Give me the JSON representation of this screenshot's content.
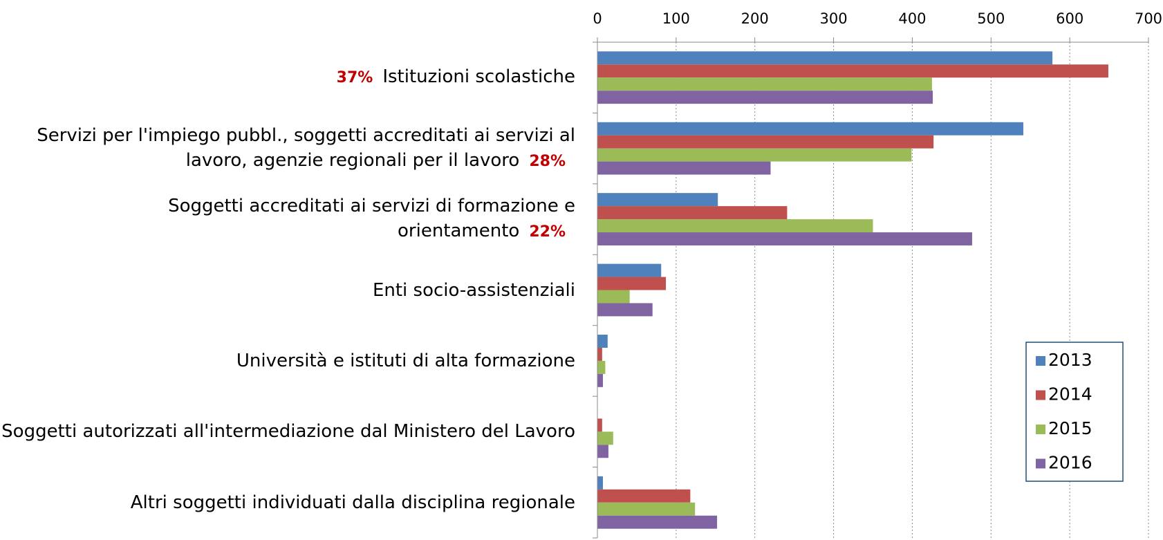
{
  "chart_data": {
    "type": "bar",
    "orientation": "horizontal",
    "categories": [
      "Istituzioni scolastiche",
      "Servizi per l'impiego pubbl., soggetti accreditati ai servizi al lavoro, agenzie regionali per il lavoro",
      "Soggetti accreditati ai servizi di formazione e orientamento",
      "Enti socio-assistenziali",
      "Università e istituti di alta formazione",
      "Soggetti autorizzati all'intermediazione dal Ministero del Lavoro",
      "Altri soggetti individuati dalla disciplina regionale"
    ],
    "annotations": [
      {
        "text": "37%",
        "before": true
      },
      {
        "text": "28%"
      },
      {
        "text": "22%"
      },
      null,
      null,
      null,
      null
    ],
    "series": [
      {
        "name": "2013",
        "color": "#4f81bd",
        "values": [
          578,
          541,
          153,
          81,
          13,
          0,
          7
        ]
      },
      {
        "name": "2014",
        "color": "#c0504d",
        "values": [
          649,
          427,
          241,
          87,
          6,
          6,
          118
        ]
      },
      {
        "name": "2015",
        "color": "#9bbb59",
        "values": [
          425,
          399,
          350,
          41,
          10,
          20,
          124
        ]
      },
      {
        "name": "2016",
        "color": "#8064a2",
        "values": [
          426,
          220,
          476,
          70,
          7,
          14,
          152
        ]
      }
    ],
    "xlim": [
      0,
      700
    ],
    "xticks": [
      0,
      100,
      200,
      300,
      400,
      500,
      600,
      700
    ],
    "grid": true,
    "legend": "lower right"
  }
}
